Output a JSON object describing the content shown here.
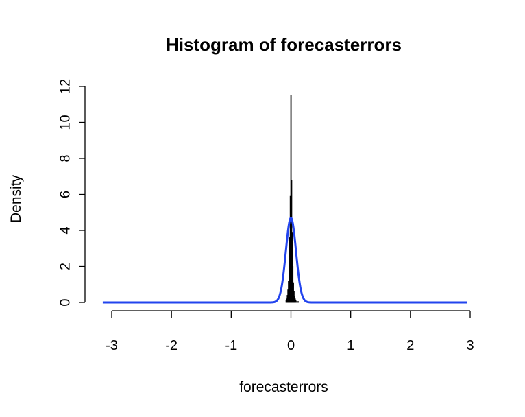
{
  "chart_data": {
    "type": "bar",
    "title": "Histogram of forecasterrors",
    "xlabel": "forecasterrors",
    "ylabel": "Density",
    "xlim": [
      -3,
      3
    ],
    "ylim": [
      0,
      12
    ],
    "x_ticks": [
      -3,
      -2,
      -1,
      0,
      1,
      2,
      3
    ],
    "y_ticks": [
      0,
      2,
      4,
      6,
      8,
      10,
      12
    ],
    "bin_width": 0.01,
    "bins": [
      {
        "x": -0.08,
        "density": 0.1
      },
      {
        "x": -0.07,
        "density": 0.2
      },
      {
        "x": -0.06,
        "density": 0.4
      },
      {
        "x": -0.05,
        "density": 0.7
      },
      {
        "x": -0.04,
        "density": 1.2
      },
      {
        "x": -0.03,
        "density": 2.2
      },
      {
        "x": -0.02,
        "density": 3.6
      },
      {
        "x": -0.01,
        "density": 5.9
      },
      {
        "x": 0.0,
        "density": 11.5
      },
      {
        "x": 0.01,
        "density": 6.8
      },
      {
        "x": 0.02,
        "density": 3.9
      },
      {
        "x": 0.03,
        "density": 2.0
      },
      {
        "x": 0.04,
        "density": 1.1
      },
      {
        "x": 0.05,
        "density": 0.6
      },
      {
        "x": 0.06,
        "density": 0.35
      },
      {
        "x": 0.07,
        "density": 0.2
      },
      {
        "x": 0.08,
        "density": 0.1
      },
      {
        "x": 0.1,
        "density": 0.05
      },
      {
        "x": 0.12,
        "density": 0.05
      }
    ],
    "series": [
      {
        "type": "line",
        "color": "#2244ee",
        "x_range": [
          -3.15,
          2.95
        ],
        "curve": {
          "distribution": "normal",
          "mean": 0.0,
          "sd": 0.085,
          "peak_density": 4.7
        }
      }
    ],
    "bar_color": "#000000",
    "grid": false
  }
}
